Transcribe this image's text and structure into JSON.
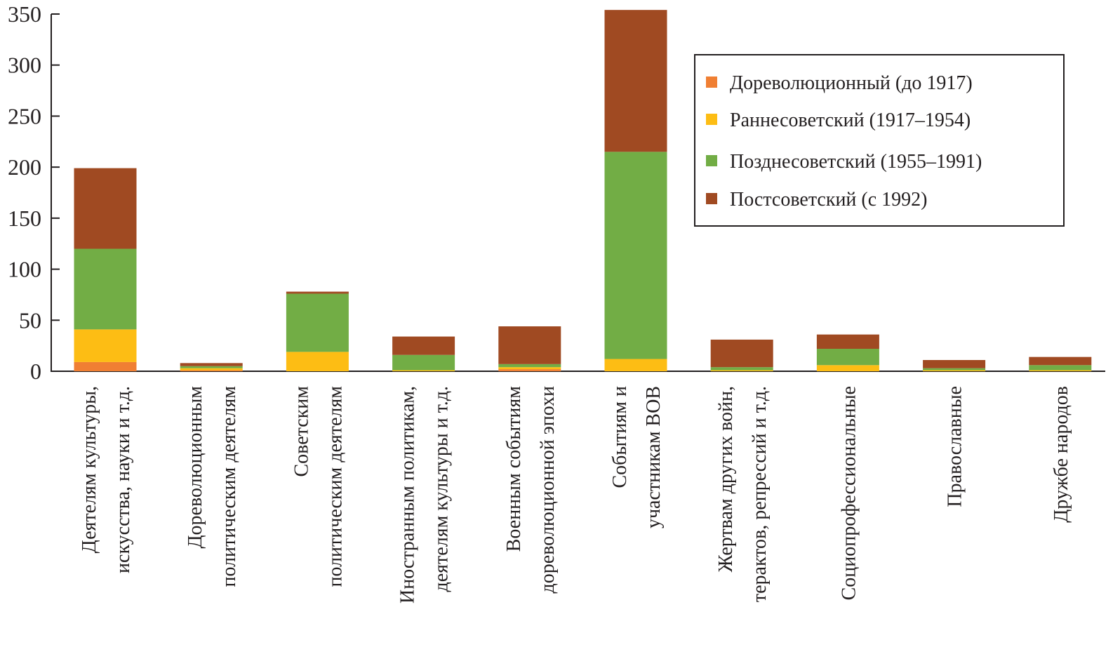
{
  "chart_data": {
    "type": "bar",
    "stacked": true,
    "title": "",
    "xlabel": "",
    "ylabel": "",
    "ylim": [
      0,
      350
    ],
    "yticks": [
      0,
      50,
      100,
      150,
      200,
      250,
      300,
      350
    ],
    "grid": false,
    "legend_position": "top-right",
    "categories": [
      [
        "Деятелям культуры,",
        "искусства, науки и т.д."
      ],
      [
        "Дореволюционным",
        "политическим деятелям"
      ],
      [
        "Советским",
        "политическим деятелям"
      ],
      [
        "Иностранным политикам,",
        "деятелям культуры и т.д."
      ],
      [
        "Военным событиям",
        "дореволюционной эпохи"
      ],
      [
        "Событиям и",
        "участникам ВОВ"
      ],
      [
        "Жертвам других войн,",
        "терактов, репрессий и т.д."
      ],
      [
        "Социопрофессиональные"
      ],
      [
        "Православные"
      ],
      [
        "Дружбе народов"
      ]
    ],
    "series": [
      {
        "name": "Дореволюционный (до 1917)",
        "color": "#f07f33",
        "values": [
          9,
          1,
          0,
          0,
          2,
          0,
          0,
          0,
          0,
          0
        ]
      },
      {
        "name": "Раннесоветский (1917–1954)",
        "color": "#fdbd14",
        "values": [
          32,
          2,
          19,
          1,
          2,
          12,
          1,
          6,
          1,
          1
        ]
      },
      {
        "name": "Позднесоветский (1955–1991)",
        "color": "#72ad45",
        "values": [
          79,
          2,
          57,
          15,
          3,
          203,
          3,
          16,
          2,
          5
        ]
      },
      {
        "name": "Постсоветский (с 1992)",
        "color": "#a04a22",
        "values": [
          79,
          3,
          2,
          18,
          37,
          139,
          27,
          14,
          8,
          8
        ]
      }
    ]
  }
}
